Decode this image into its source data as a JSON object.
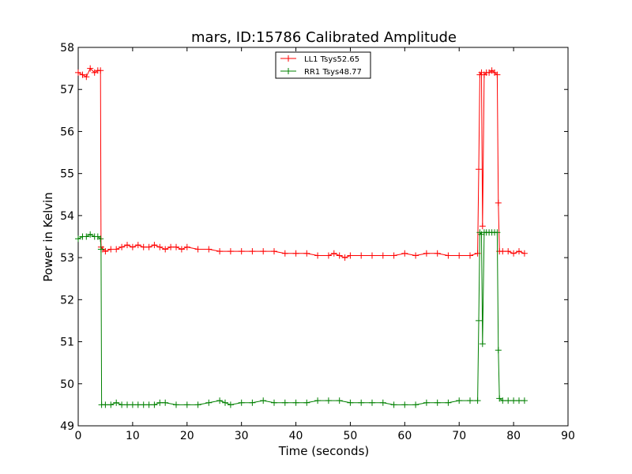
{
  "chart_data": {
    "type": "line",
    "title": "mars, ID:15786 Calibrated Amplitude",
    "xlabel": "Time (seconds)",
    "ylabel": "Power in Kelvin",
    "xlim": [
      0,
      90
    ],
    "ylim": [
      49,
      58
    ],
    "xticks": [
      0,
      10,
      20,
      30,
      40,
      50,
      60,
      70,
      80,
      90
    ],
    "yticks": [
      49,
      50,
      51,
      52,
      53,
      54,
      55,
      56,
      57,
      58
    ],
    "grid": false,
    "legend_position": "top-center",
    "marker": "+",
    "series": [
      {
        "name": "LL1 Tsys52.65",
        "color": "#ff0000",
        "points": [
          [
            0.0,
            57.4
          ],
          [
            0.8,
            57.35
          ],
          [
            1.5,
            57.3
          ],
          [
            2.2,
            57.5
          ],
          [
            3.0,
            57.4
          ],
          [
            3.6,
            57.45
          ],
          [
            4.1,
            57.45
          ],
          [
            4.2,
            53.25
          ],
          [
            4.5,
            53.2
          ],
          [
            5,
            53.15
          ],
          [
            6,
            53.2
          ],
          [
            7,
            53.2
          ],
          [
            8,
            53.25
          ],
          [
            9,
            53.3
          ],
          [
            10,
            53.25
          ],
          [
            11,
            53.3
          ],
          [
            12,
            53.25
          ],
          [
            13,
            53.25
          ],
          [
            14,
            53.3
          ],
          [
            15,
            53.25
          ],
          [
            16,
            53.2
          ],
          [
            17,
            53.25
          ],
          [
            18,
            53.25
          ],
          [
            19,
            53.2
          ],
          [
            20,
            53.25
          ],
          [
            22,
            53.2
          ],
          [
            24,
            53.2
          ],
          [
            26,
            53.15
          ],
          [
            28,
            53.15
          ],
          [
            30,
            53.15
          ],
          [
            32,
            53.15
          ],
          [
            34,
            53.15
          ],
          [
            36,
            53.15
          ],
          [
            38,
            53.1
          ],
          [
            40,
            53.1
          ],
          [
            42,
            53.1
          ],
          [
            44,
            53.05
          ],
          [
            46,
            53.05
          ],
          [
            47,
            53.1
          ],
          [
            48,
            53.05
          ],
          [
            49,
            53.0
          ],
          [
            50,
            53.05
          ],
          [
            52,
            53.05
          ],
          [
            54,
            53.05
          ],
          [
            56,
            53.05
          ],
          [
            58,
            53.05
          ],
          [
            60,
            53.1
          ],
          [
            62,
            53.05
          ],
          [
            64,
            53.1
          ],
          [
            66,
            53.1
          ],
          [
            68,
            53.05
          ],
          [
            70,
            53.05
          ],
          [
            72,
            53.05
          ],
          [
            73.4,
            53.1
          ],
          [
            73.6,
            55.1
          ],
          [
            73.8,
            57.35
          ],
          [
            74.1,
            57.4
          ],
          [
            74.3,
            53.75
          ],
          [
            74.6,
            57.35
          ],
          [
            75,
            57.4
          ],
          [
            75.5,
            57.4
          ],
          [
            76,
            57.45
          ],
          [
            76.5,
            57.4
          ],
          [
            77.0,
            57.35
          ],
          [
            77.2,
            54.3
          ],
          [
            77.4,
            53.15
          ],
          [
            78,
            53.15
          ],
          [
            79,
            53.15
          ],
          [
            80,
            53.1
          ],
          [
            81,
            53.15
          ],
          [
            82,
            53.1
          ]
        ]
      },
      {
        "name": "RR1 Tsys48.77",
        "color": "#008000",
        "points": [
          [
            0.0,
            53.45
          ],
          [
            0.8,
            53.5
          ],
          [
            1.5,
            53.5
          ],
          [
            2.2,
            53.55
          ],
          [
            3.0,
            53.5
          ],
          [
            3.6,
            53.5
          ],
          [
            4.1,
            53.45
          ],
          [
            4.2,
            53.2
          ],
          [
            4.3,
            49.5
          ],
          [
            5,
            49.5
          ],
          [
            6,
            49.5
          ],
          [
            7,
            49.55
          ],
          [
            8,
            49.5
          ],
          [
            9,
            49.5
          ],
          [
            10,
            49.5
          ],
          [
            11,
            49.5
          ],
          [
            12,
            49.5
          ],
          [
            13,
            49.5
          ],
          [
            14,
            49.5
          ],
          [
            15,
            49.55
          ],
          [
            16,
            49.55
          ],
          [
            18,
            49.5
          ],
          [
            20,
            49.5
          ],
          [
            22,
            49.5
          ],
          [
            24,
            49.55
          ],
          [
            26,
            49.6
          ],
          [
            27,
            49.55
          ],
          [
            28,
            49.5
          ],
          [
            30,
            49.55
          ],
          [
            32,
            49.55
          ],
          [
            34,
            49.6
          ],
          [
            36,
            49.55
          ],
          [
            38,
            49.55
          ],
          [
            40,
            49.55
          ],
          [
            42,
            49.55
          ],
          [
            44,
            49.6
          ],
          [
            46,
            49.6
          ],
          [
            48,
            49.6
          ],
          [
            50,
            49.55
          ],
          [
            52,
            49.55
          ],
          [
            54,
            49.55
          ],
          [
            56,
            49.55
          ],
          [
            58,
            49.5
          ],
          [
            60,
            49.5
          ],
          [
            62,
            49.5
          ],
          [
            64,
            49.55
          ],
          [
            66,
            49.55
          ],
          [
            68,
            49.55
          ],
          [
            70,
            49.6
          ],
          [
            72,
            49.6
          ],
          [
            73.4,
            49.6
          ],
          [
            73.6,
            51.5
          ],
          [
            73.8,
            53.6
          ],
          [
            74.1,
            53.55
          ],
          [
            74.3,
            50.95
          ],
          [
            74.6,
            53.6
          ],
          [
            75,
            53.6
          ],
          [
            75.5,
            53.6
          ],
          [
            76,
            53.6
          ],
          [
            76.5,
            53.6
          ],
          [
            77.0,
            53.6
          ],
          [
            77.2,
            50.8
          ],
          [
            77.4,
            49.65
          ],
          [
            78,
            49.6
          ],
          [
            79,
            49.6
          ],
          [
            80,
            49.6
          ],
          [
            81,
            49.6
          ],
          [
            82,
            49.6
          ]
        ]
      }
    ]
  }
}
